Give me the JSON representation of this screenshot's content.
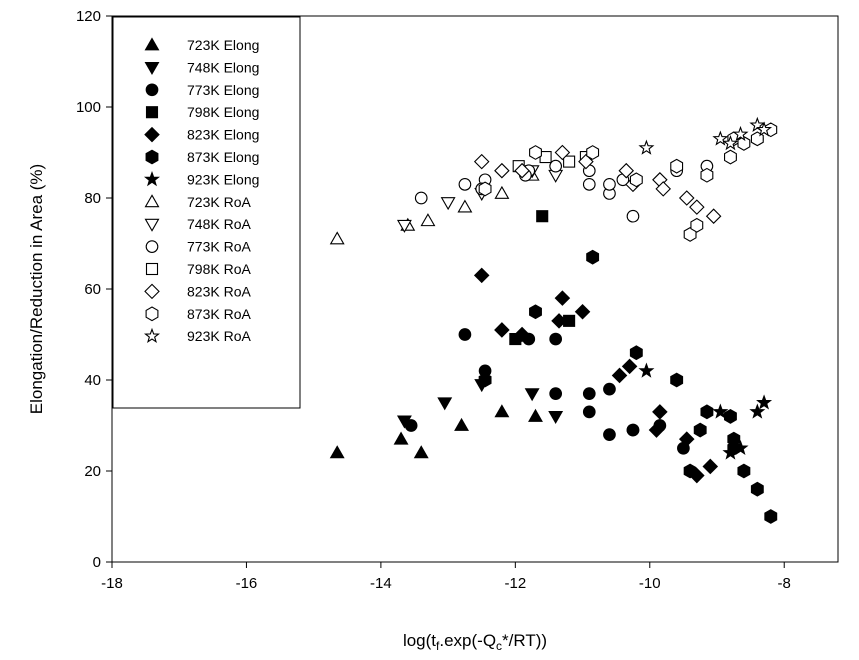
{
  "chart_data": {
    "type": "scatter",
    "xlabel": "log(t_f.exp(-Q_c*/RT))",
    "xlabel_parts": [
      "log(t",
      "f",
      ".exp(-Q",
      "c",
      "*/RT))"
    ],
    "ylabel": "Elongation/Reduction in Area (%)",
    "xlim": [
      -18,
      -7.2
    ],
    "ylim": [
      0,
      120
    ],
    "xticks": [
      -18,
      -16,
      -14,
      -12,
      -10,
      -8
    ],
    "yticks": [
      0,
      20,
      40,
      60,
      80,
      100,
      120
    ],
    "grid": false,
    "legend_position": "top-left",
    "series": [
      {
        "name": "723K Elong",
        "marker": "triangle-up",
        "filled": true,
        "x": [
          -14.65,
          -13.7,
          -13.4,
          -12.8,
          -12.2,
          -11.7
        ],
        "y": [
          24,
          27,
          24,
          30,
          33,
          32
        ]
      },
      {
        "name": "748K Elong",
        "marker": "triangle-down",
        "filled": true,
        "x": [
          -13.65,
          -13.05,
          -12.5,
          -11.75,
          -11.4
        ],
        "y": [
          31,
          35,
          39,
          37,
          32
        ]
      },
      {
        "name": "773K Elong",
        "marker": "circle",
        "filled": true,
        "x": [
          -13.55,
          -12.75,
          -12.45,
          -11.8,
          -11.4,
          -10.9,
          -10.6,
          -10.25,
          -9.85,
          -9.5
        ],
        "y": [
          30,
          50,
          42,
          49,
          37,
          37,
          28,
          29,
          30,
          25
        ],
        "x_b": [
          -11.4,
          -10.9,
          -10.6,
          -10.25
        ],
        "y_b": [
          49,
          33,
          38,
          29
        ]
      },
      {
        "name": "798K Elong",
        "marker": "square",
        "filled": true,
        "x": [
          -11.6,
          -12.0,
          -11.2
        ],
        "y": [
          76,
          49,
          53
        ]
      },
      {
        "name": "823K Elong",
        "marker": "diamond",
        "filled": true,
        "x": [
          -12.5,
          -12.2,
          -11.9,
          -11.3,
          -11.35,
          -11.0,
          -10.45,
          -10.3,
          -9.85,
          -9.9,
          -9.45,
          -9.3,
          -9.1
        ],
        "y": [
          63,
          51,
          50,
          58,
          53,
          55,
          41,
          43,
          33,
          29,
          27,
          19,
          21
        ]
      },
      {
        "name": "873K Elong",
        "marker": "hexagon",
        "filled": true,
        "x": [
          -12.45,
          -11.7,
          -10.85,
          -10.2,
          -9.6,
          -9.4,
          -9.25,
          -9.15,
          -8.8,
          -8.75,
          -8.6,
          -8.4,
          -8.2,
          -8.75
        ],
        "y": [
          40,
          55,
          67,
          46,
          40,
          20,
          29,
          33,
          32,
          27,
          20,
          16,
          10,
          25
        ]
      },
      {
        "name": "923K Elong",
        "marker": "star",
        "filled": true,
        "x": [
          -10.05,
          -8.95,
          -8.8,
          -8.65,
          -8.4,
          -8.3
        ],
        "y": [
          42,
          33,
          24,
          25,
          33,
          35
        ]
      },
      {
        "name": "723K RoA",
        "marker": "triangle-up",
        "filled": false,
        "x": [
          -14.65,
          -13.6,
          -13.3,
          -12.75,
          -12.2,
          -11.75
        ],
        "y": [
          71,
          74,
          75,
          78,
          81,
          85
        ]
      },
      {
        "name": "748K RoA",
        "marker": "triangle-down",
        "filled": false,
        "x": [
          -13.65,
          -13.0,
          -12.5,
          -11.75,
          -11.4
        ],
        "y": [
          74,
          79,
          81,
          86,
          85
        ]
      },
      {
        "name": "773K RoA",
        "marker": "circle",
        "filled": false,
        "x": [
          -13.4,
          -12.75,
          -12.45,
          -11.8,
          -11.4,
          -10.9,
          -10.6,
          -10.25,
          -9.6,
          -9.15,
          -8.8,
          -8.6,
          -8.4
        ],
        "y": [
          80,
          83,
          84,
          86,
          87,
          83,
          81,
          76,
          86,
          87,
          89,
          92,
          93
        ],
        "x_b": [
          -12.5,
          -11.85,
          -10.9,
          -10.6,
          -10.4
        ],
        "y_b": [
          82,
          85,
          86,
          83,
          84
        ]
      },
      {
        "name": "798K RoA",
        "marker": "square",
        "filled": false,
        "x": [
          -11.95,
          -11.55,
          -11.2,
          -10.95
        ],
        "y": [
          87,
          89,
          88,
          89
        ]
      },
      {
        "name": "823K RoA",
        "marker": "diamond",
        "filled": false,
        "x": [
          -12.5,
          -12.2,
          -11.9,
          -11.3,
          -10.95,
          -10.35,
          -10.25,
          -9.85,
          -9.8,
          -9.45,
          -9.3,
          -9.05
        ],
        "y": [
          88,
          86,
          86,
          90,
          88,
          86,
          83,
          84,
          82,
          80,
          78,
          76
        ]
      },
      {
        "name": "873K RoA",
        "marker": "hexagon",
        "filled": false,
        "x": [
          -12.45,
          -11.7,
          -10.85,
          -10.2,
          -9.6,
          -9.4,
          -9.3,
          -9.15,
          -8.8,
          -8.75,
          -8.6,
          -8.4,
          -8.2
        ],
        "y": [
          82,
          90,
          90,
          84,
          87,
          72,
          74,
          85,
          89,
          93,
          92,
          93,
          95
        ]
      },
      {
        "name": "923K RoA",
        "marker": "star",
        "filled": false,
        "x": [
          -10.05,
          -8.95,
          -8.8,
          -8.65,
          -8.4,
          -8.3
        ],
        "y": [
          91,
          93,
          92,
          94,
          96,
          95
        ]
      }
    ]
  }
}
